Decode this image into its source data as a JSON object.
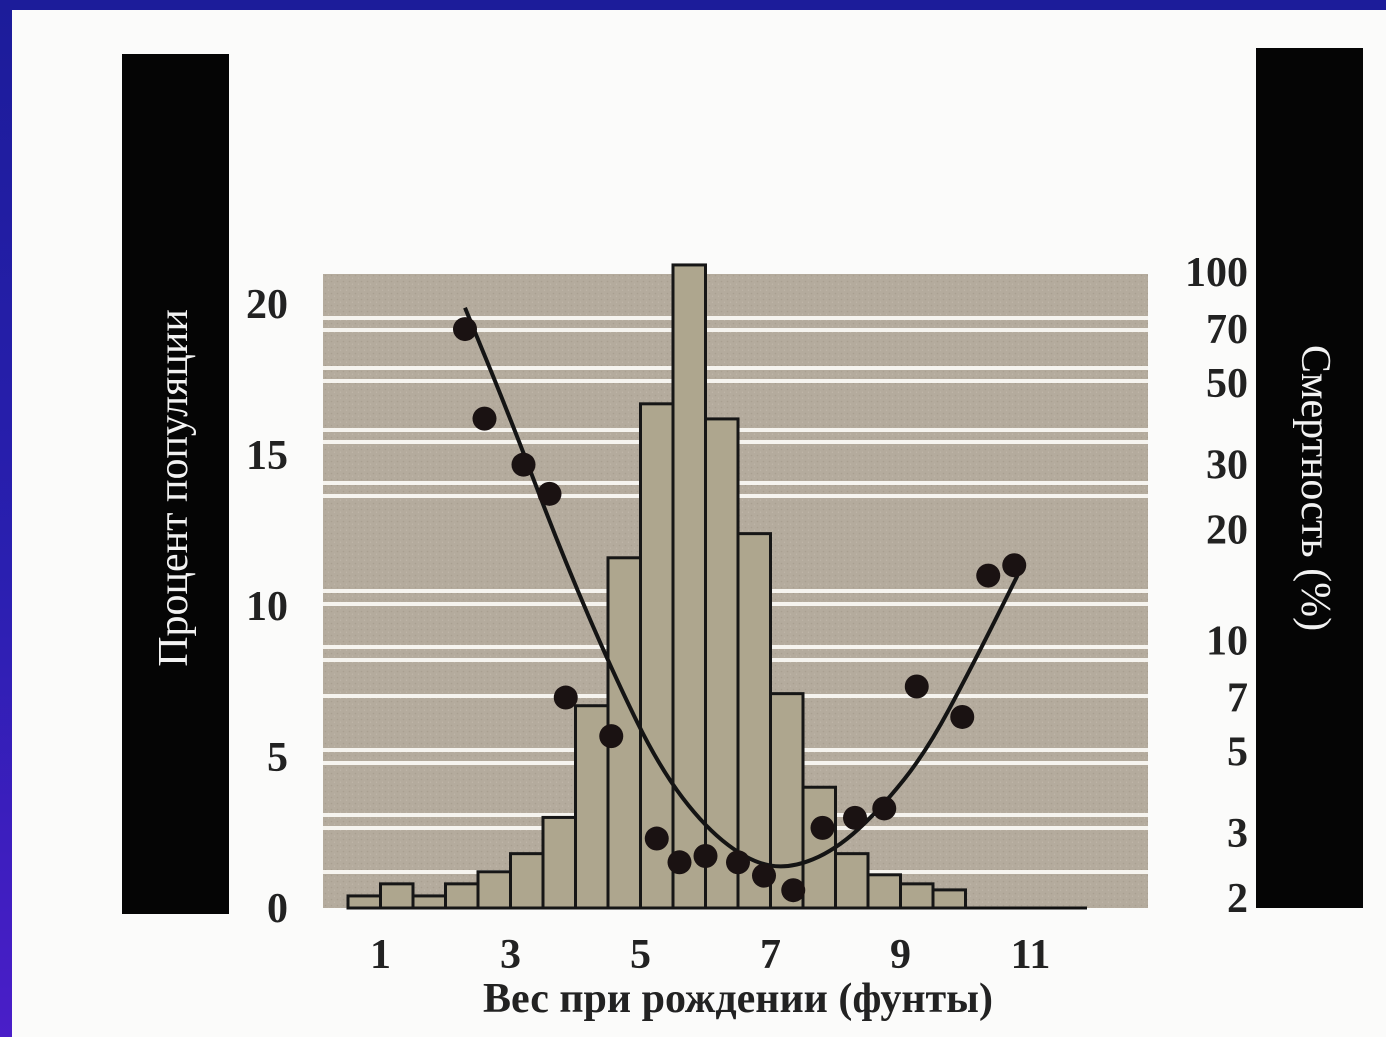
{
  "chart_data": {
    "type": "bar",
    "x_tick_labels": [
      "1",
      "3",
      "5",
      "7",
      "9",
      "11"
    ],
    "xlabel": "Вес при рождении (фунты)",
    "ylabel_left": "Процент популяции",
    "ylabel_right": "Смертность (%)",
    "y_left_ticks": [
      "0",
      "5",
      "10",
      "15",
      "20"
    ],
    "y_right_ticks": [
      "2",
      "3",
      "5",
      "7",
      "10",
      "20",
      "30",
      "50",
      "70",
      "100"
    ],
    "y_left_range": [
      0,
      21
    ],
    "y_right_range": [
      2,
      100
    ],
    "y_right_scale": "log",
    "grid": true,
    "bars": {
      "name": "Процент популяции",
      "x": [
        0.75,
        1.25,
        1.75,
        2.25,
        2.75,
        3.25,
        3.75,
        4.25,
        4.75,
        5.25,
        5.75,
        6.25,
        6.75,
        7.25,
        7.75,
        8.25,
        8.75,
        9.25,
        9.75,
        10.25,
        10.75
      ],
      "values": [
        0.4,
        0.8,
        0.4,
        0.8,
        1.2,
        1.8,
        3.0,
        6.7,
        11.6,
        16.7,
        21.3,
        16.2,
        12.4,
        7.1,
        4.0,
        1.8,
        1.1,
        0.8,
        0.6,
        0,
        0
      ]
    },
    "points": {
      "name": "Смертность (%)",
      "x": [
        2.3,
        2.6,
        3.2,
        3.6,
        3.85,
        4.55,
        5.25,
        5.6,
        6.0,
        6.5,
        6.9,
        7.35,
        7.8,
        8.3,
        8.75,
        9.25,
        9.95,
        10.35,
        10.75
      ],
      "y": [
        70,
        40,
        30,
        25,
        7,
        5.5,
        2.9,
        2.5,
        2.6,
        2.5,
        2.3,
        2.1,
        3.1,
        3.3,
        3.5,
        7.5,
        6.2,
        15,
        16
      ]
    },
    "fit_curve": {
      "x": [
        2.3,
        3.0,
        3.8,
        4.6,
        5.3,
        6.0,
        6.7,
        7.3,
        8.0,
        8.7,
        9.4,
        10.1,
        10.8
      ],
      "y": [
        80,
        40,
        17,
        8,
        4.5,
        3.1,
        2.5,
        2.4,
        2.7,
        3.5,
        5,
        8.5,
        15
      ]
    }
  }
}
